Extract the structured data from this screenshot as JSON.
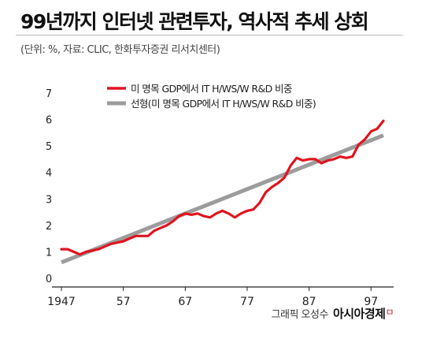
{
  "header": {
    "title": "99년까지 인터넷 관련투자, 역사적 추세 상회",
    "source": "(단위: %, 자료: CLIC, 한화투자증권 리서치센터)"
  },
  "footer": {
    "credit": "그래픽 오성수",
    "brand": "아시아경제",
    "brand_mark": "ㅁ"
  },
  "colors": {
    "actual": "#e0141e",
    "trend": "#9c9c9c",
    "axis": "#222222",
    "text": "#222222"
  },
  "chart_data": {
    "type": "line",
    "title": "99년까지 인터넷 관련투자, 역사적 추세 상회",
    "ylim": [
      0,
      7
    ],
    "xlim": [
      1947,
      1999
    ],
    "yticks": [
      "0",
      "1",
      "2",
      "3",
      "4",
      "5",
      "6",
      "7"
    ],
    "xticks": [
      {
        "value": 1947,
        "label": "1947"
      },
      {
        "value": 1957,
        "label": "57"
      },
      {
        "value": 1967,
        "label": "67"
      },
      {
        "value": 1977,
        "label": "77"
      },
      {
        "value": 1987,
        "label": "87"
      },
      {
        "value": 1997,
        "label": "97"
      }
    ],
    "legend_position": "top",
    "series": [
      {
        "name": "미 명목 GDP에서 IT H/WS/W R&D 비중",
        "color": "#e0141e",
        "x": [
          1947,
          1948,
          1949,
          1950,
          1951,
          1952,
          1953,
          1954,
          1955,
          1956,
          1957,
          1958,
          1959,
          1960,
          1961,
          1962,
          1963,
          1964,
          1965,
          1966,
          1967,
          1968,
          1969,
          1970,
          1971,
          1972,
          1973,
          1974,
          1975,
          1976,
          1977,
          1978,
          1979,
          1980,
          1981,
          1982,
          1983,
          1984,
          1985,
          1986,
          1987,
          1988,
          1989,
          1990,
          1991,
          1992,
          1993,
          1994,
          1995,
          1996,
          1997,
          1998,
          1999
        ],
        "values": [
          1.1,
          1.1,
          1.0,
          0.9,
          1.0,
          1.05,
          1.1,
          1.2,
          1.3,
          1.35,
          1.4,
          1.5,
          1.6,
          1.6,
          1.6,
          1.8,
          1.9,
          2.0,
          2.15,
          2.35,
          2.45,
          2.4,
          2.45,
          2.35,
          2.3,
          2.45,
          2.55,
          2.45,
          2.3,
          2.45,
          2.55,
          2.6,
          2.85,
          3.25,
          3.45,
          3.6,
          3.8,
          4.25,
          4.55,
          4.45,
          4.5,
          4.5,
          4.35,
          4.45,
          4.5,
          4.6,
          4.55,
          4.6,
          5.05,
          5.25,
          5.55,
          5.65,
          5.95
        ]
      },
      {
        "name": "선형(미 명목 GDP에서 IT H/WS/W R&D 비중)",
        "color": "#9c9c9c",
        "x": [
          1947,
          1999
        ],
        "values": [
          0.6,
          5.4
        ]
      }
    ]
  }
}
